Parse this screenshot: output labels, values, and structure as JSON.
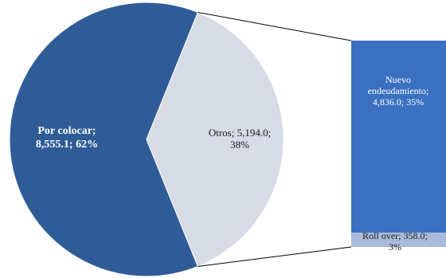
{
  "chart_data": {
    "type": "pie",
    "subtype": "pie-of-bar",
    "colors": {
      "primary": "#2f5c97",
      "secondary": "#d7dbe5",
      "bar_main": "#3a70bf",
      "bar_small": "#a9b9d9",
      "connector": "#000000"
    },
    "pie": {
      "slices": [
        {
          "name": "Por colocar",
          "value": 8555.1,
          "percent": 62,
          "label_lines": [
            "Por colocar;",
            "8,555.1; 62%"
          ]
        },
        {
          "name": "Otros",
          "value": 5194.0,
          "percent": 38,
          "label_lines": [
            "Otros; 5,194.0;",
            "38%"
          ]
        }
      ]
    },
    "bar": {
      "segments": [
        {
          "name": "Nuevo endeudamiento",
          "value": 4836.0,
          "percent": 35,
          "label_lines": [
            "Nuevo",
            "endeudamiento;",
            "4,836.0; 35%"
          ]
        },
        {
          "name": "Roll over",
          "value": 358.0,
          "percent": 3,
          "label_lines": [
            "Roll over; 358.0;",
            "3%"
          ]
        }
      ]
    }
  }
}
